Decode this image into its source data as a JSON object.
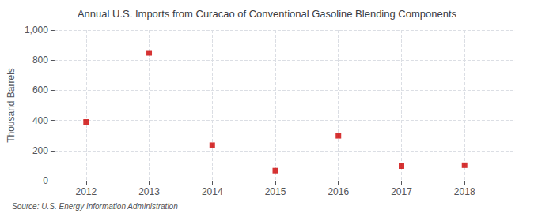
{
  "chart_data": {
    "type": "scatter",
    "title": "Annual U.S. Imports from Curacao of Conventional Gasoline Blending Components",
    "ylabel": "Thousand Barrels",
    "source": "Source: U.S. Energy Information Administration",
    "x": [
      2012,
      2013,
      2014,
      2015,
      2016,
      2017,
      2018
    ],
    "values": [
      390,
      848,
      236,
      67,
      298,
      97,
      103
    ],
    "color": "#cc0000",
    "marker": "square",
    "xlim": [
      2011.5,
      2018.8
    ],
    "xticks": [
      2012,
      2013,
      2014,
      2015,
      2016,
      2017,
      2018
    ],
    "ylim": [
      0,
      1000
    ],
    "yticks": [
      0,
      200,
      400,
      600,
      800,
      {
        "value": 1000,
        "label": "1,000"
      }
    ],
    "grid": true
  }
}
